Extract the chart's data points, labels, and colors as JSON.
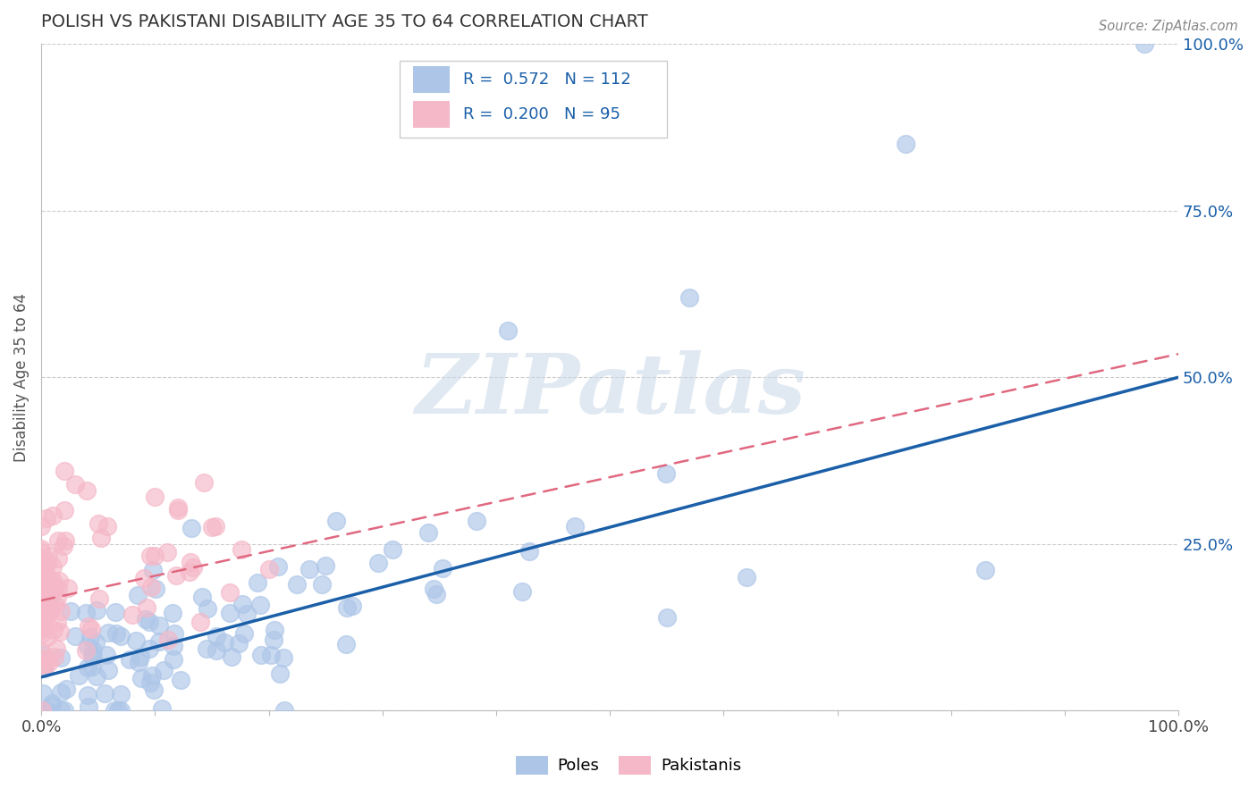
{
  "title": "POLISH VS PAKISTANI DISABILITY AGE 35 TO 64 CORRELATION CHART",
  "source_text": "Source: ZipAtlas.com",
  "ylabel": "Disability Age 35 to 64",
  "xlim": [
    0.0,
    1.0
  ],
  "ylim": [
    0.0,
    1.0
  ],
  "poles_R": 0.572,
  "poles_N": 112,
  "pakistanis_R": 0.2,
  "pakistanis_N": 95,
  "blue_color": "#adc6e8",
  "pink_color": "#f5b8c8",
  "blue_line_color": "#1a5fa8",
  "pink_line_color": "#e06880",
  "watermark": "ZIPatlas",
  "legend_poles": "Poles",
  "legend_pakistanis": "Pakistanis",
  "blue_line_x0": 0.0,
  "blue_line_y0": 0.05,
  "blue_line_x1": 1.0,
  "blue_line_y1": 0.5,
  "pink_line_x0": 0.0,
  "pink_line_y0": 0.165,
  "pink_line_x1": 1.0,
  "pink_line_y1": 0.535
}
